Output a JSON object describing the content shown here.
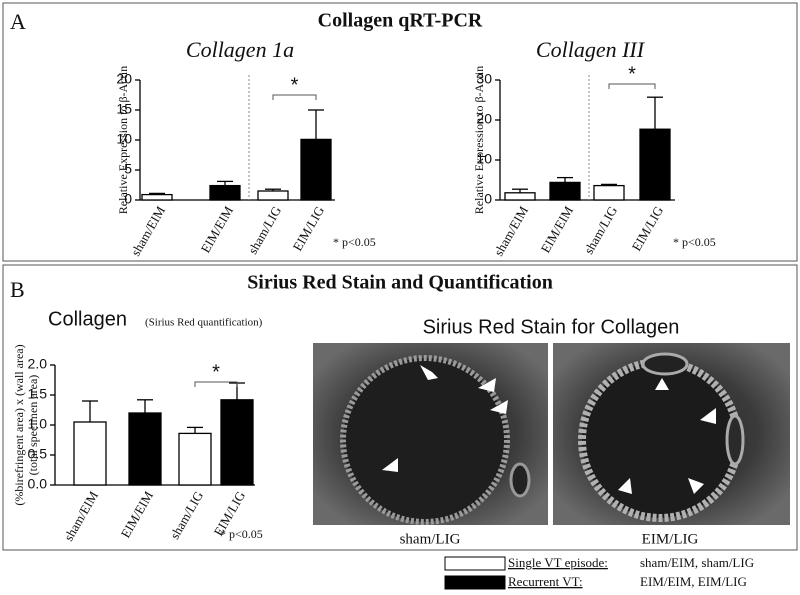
{
  "panel_a": {
    "label": "A",
    "title": "Collagen qRT-PCR"
  },
  "panel_b": {
    "label": "B",
    "title": "Sirius Red Stain and Quantification",
    "image_title": "Sirius Red Stain for Collagen",
    "image_captions": [
      "sham/LIG",
      "EIM/LIG"
    ]
  },
  "legend": {
    "single_label": "Single VT episode:",
    "single_groups": "sham/EIM, sham/LIG",
    "recurrent_label": "Recurrent VT:",
    "recurrent_groups": "EIM/EIM, EIM/LIG"
  },
  "chart_data": [
    {
      "type": "bar",
      "title": "Collagen 1a",
      "ylabel": "Relative Expression to β-Actin",
      "categories": [
        "sham/EIM",
        "EIM/EIM",
        "sham/LIG",
        "EIM/LIG"
      ],
      "values": [
        0.9,
        2.4,
        1.5,
        10.1
      ],
      "errors": [
        0.2,
        0.7,
        0.3,
        4.9
      ],
      "colors": [
        "#ffffff",
        "#000000",
        "#ffffff",
        "#000000"
      ],
      "ylim": [
        0,
        20
      ],
      "yticks": [
        0,
        5,
        10,
        15,
        20
      ],
      "annotation": "*",
      "note": "* p<0.05"
    },
    {
      "type": "bar",
      "title": "Collagen III",
      "ylabel": "Relative Expression to β-Actin",
      "categories": [
        "sham/EIM",
        "EIM/EIM",
        "sham/LIG",
        "EIM/LIG"
      ],
      "values": [
        1.8,
        4.4,
        3.6,
        17.7
      ],
      "errors": [
        0.9,
        1.2,
        0.3,
        8.0
      ],
      "colors": [
        "#ffffff",
        "#000000",
        "#ffffff",
        "#000000"
      ],
      "ylim": [
        0,
        30
      ],
      "yticks": [
        0,
        10,
        20,
        30
      ],
      "annotation": "*",
      "note": "* p<0.05"
    },
    {
      "type": "bar",
      "title": "Collagen",
      "subtitle": "(Sirius Red quantification)",
      "ylabel": "(%birefringent area) x (wall area)",
      "ylabel2": "(total specimen area)",
      "categories": [
        "sham/EIM",
        "EIM/EIM",
        "sham/LIG",
        "EIM/LIG"
      ],
      "values": [
        1.05,
        1.2,
        0.86,
        1.42
      ],
      "errors": [
        0.35,
        0.22,
        0.1,
        0.28
      ],
      "colors": [
        "#ffffff",
        "#000000",
        "#ffffff",
        "#000000"
      ],
      "ylim": [
        0,
        2
      ],
      "yticks": [
        {
          "value": 0,
          "label": "0.0"
        },
        0.5,
        {
          "value": 1,
          "label": "1.0"
        },
        1.5,
        {
          "value": 2,
          "label": "2.0"
        }
      ],
      "annotation": "*",
      "note": "* p<0.05"
    }
  ]
}
